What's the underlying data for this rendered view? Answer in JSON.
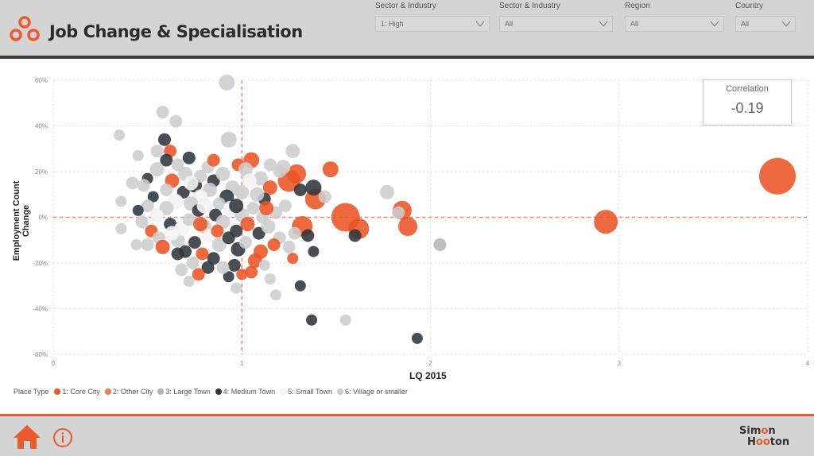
{
  "header": {
    "title": "Job Change & Specialisation"
  },
  "slicers": [
    {
      "label": "Sector & Industry",
      "value": "1: High"
    },
    {
      "label": "Sector & Industry",
      "value": "All"
    },
    {
      "label": "Region",
      "value": "All"
    },
    {
      "label": "Country",
      "value": "All"
    }
  ],
  "correlation": {
    "label": "Correlation",
    "value": "-0.19"
  },
  "footer": {
    "brand_line1": "Simon",
    "brand_line2": "Hooton"
  },
  "colors": {
    "accent": "#ea5a2c",
    "types": {
      "1": "#ec5424",
      "2": "#f27a4e",
      "3": "#b4b4b4",
      "4": "#2f353c",
      "5": "#f4f4f4",
      "6": "#cdcdcd"
    }
  },
  "chart_data": {
    "type": "scatter",
    "title": "",
    "xlabel": "LQ 2015",
    "ylabel": "Employment Count Change",
    "xlim": [
      0,
      4
    ],
    "ylim": [
      -60,
      60
    ],
    "xticks": [
      "0",
      "1",
      "2",
      "3",
      "4"
    ],
    "yticks": [
      "60%",
      "40%",
      "20%",
      "0%",
      "-20%",
      "-40%",
      "-60%"
    ],
    "reference_lines": {
      "x": 1,
      "y": 0
    },
    "grid": true,
    "legend": {
      "title": "Place Type",
      "position": "bottom-left",
      "entries": [
        "1: Core City",
        "2: Other City",
        "3: Large Town",
        "4: Medium Town",
        "5: Small Town",
        "6: Village or smaller"
      ]
    },
    "point_format": [
      "lq_2015",
      "employment_change_pct",
      "place_type",
      "relative_size"
    ],
    "points": [
      [
        3.84,
        18,
        1,
        23
      ],
      [
        2.93,
        -2,
        1,
        15
      ],
      [
        2.05,
        -12,
        3,
        8
      ],
      [
        1.93,
        -53,
        4,
        7
      ],
      [
        1.55,
        -45,
        6,
        7
      ],
      [
        1.37,
        -45,
        4,
        7
      ],
      [
        1.55,
        0,
        1,
        18
      ],
      [
        1.62,
        -5,
        1,
        13
      ],
      [
        1.88,
        -4,
        1,
        12
      ],
      [
        1.85,
        3,
        1,
        12
      ],
      [
        1.83,
        2,
        6,
        8
      ],
      [
        1.77,
        11,
        6,
        9
      ],
      [
        1.6,
        -8,
        4,
        8
      ],
      [
        1.47,
        21,
        1,
        10
      ],
      [
        1.39,
        8,
        1,
        13
      ],
      [
        1.38,
        13,
        4,
        10
      ],
      [
        1.32,
        -4,
        1,
        13
      ],
      [
        1.35,
        -8,
        4,
        8
      ],
      [
        1.38,
        -15,
        4,
        7
      ],
      [
        1.31,
        -30,
        4,
        7
      ],
      [
        1.18,
        -34,
        6,
        7
      ],
      [
        0.92,
        59,
        6,
        10
      ],
      [
        0.93,
        34,
        6,
        10
      ],
      [
        0.58,
        46,
        6,
        8
      ],
      [
        0.65,
        42,
        6,
        8
      ],
      [
        0.35,
        36,
        6,
        7
      ],
      [
        0.59,
        34,
        4,
        8
      ],
      [
        1.27,
        29,
        6,
        9
      ],
      [
        1.05,
        25,
        1,
        10
      ],
      [
        1.29,
        19,
        1,
        12
      ],
      [
        1.25,
        16,
        1,
        14
      ],
      [
        1.22,
        22,
        6,
        9
      ],
      [
        1.31,
        12,
        4,
        8
      ],
      [
        1.44,
        9,
        6,
        8
      ],
      [
        0.36,
        -5,
        6,
        7
      ],
      [
        0.36,
        7,
        6,
        7
      ],
      [
        0.45,
        27,
        6,
        7
      ],
      [
        0.5,
        17,
        4,
        7
      ],
      [
        0.48,
        14,
        6,
        8
      ],
      [
        0.53,
        9,
        4,
        7
      ],
      [
        0.55,
        29,
        6,
        8
      ],
      [
        0.62,
        29,
        1,
        8
      ],
      [
        0.6,
        25,
        4,
        8
      ],
      [
        0.66,
        23,
        6,
        8
      ],
      [
        0.72,
        26,
        4,
        8
      ],
      [
        0.7,
        19,
        6,
        9
      ],
      [
        0.75,
        14,
        4,
        9
      ],
      [
        0.78,
        18,
        6,
        8
      ],
      [
        0.82,
        22,
        6,
        8
      ],
      [
        0.85,
        16,
        4,
        8
      ],
      [
        0.9,
        19,
        6,
        9
      ],
      [
        0.95,
        13,
        6,
        9
      ],
      [
        0.98,
        23,
        1,
        8
      ],
      [
        1.02,
        21,
        6,
        9
      ],
      [
        1.1,
        17,
        6,
        9
      ],
      [
        1.15,
        13,
        1,
        9
      ],
      [
        1.12,
        8,
        4,
        8
      ],
      [
        1.08,
        10,
        6,
        9
      ],
      [
        1.0,
        11,
        6,
        9
      ],
      [
        0.92,
        9,
        4,
        9
      ],
      [
        0.88,
        6,
        6,
        8
      ],
      [
        0.83,
        12,
        6,
        9
      ],
      [
        0.78,
        9,
        5,
        9
      ],
      [
        0.73,
        6,
        6,
        9
      ],
      [
        0.69,
        11,
        4,
        8
      ],
      [
        0.65,
        7,
        5,
        9
      ],
      [
        0.6,
        4,
        6,
        9
      ],
      [
        0.55,
        1,
        5,
        8
      ],
      [
        0.5,
        5,
        6,
        8
      ],
      [
        0.45,
        3,
        4,
        7
      ],
      [
        0.47,
        -2,
        6,
        8
      ],
      [
        0.52,
        -6,
        1,
        8
      ],
      [
        0.56,
        -9,
        6,
        8
      ],
      [
        0.58,
        -13,
        1,
        9
      ],
      [
        0.5,
        -12,
        6,
        8
      ],
      [
        0.62,
        -3,
        4,
        8
      ],
      [
        0.66,
        -10,
        6,
        9
      ],
      [
        0.7,
        -15,
        4,
        8
      ],
      [
        0.68,
        -5,
        5,
        9
      ],
      [
        0.72,
        -1,
        6,
        8
      ],
      [
        0.77,
        3,
        4,
        8
      ],
      [
        0.8,
        -4,
        6,
        9
      ],
      [
        0.83,
        -8,
        5,
        8
      ],
      [
        0.86,
        1,
        4,
        8
      ],
      [
        0.9,
        -2,
        6,
        9
      ],
      [
        0.94,
        4,
        5,
        9
      ],
      [
        0.97,
        -6,
        4,
        8
      ],
      [
        1.0,
        1,
        6,
        9
      ],
      [
        1.03,
        -3,
        1,
        9
      ],
      [
        1.06,
        4,
        6,
        8
      ],
      [
        1.09,
        -7,
        4,
        8
      ],
      [
        1.11,
        0,
        6,
        8
      ],
      [
        1.14,
        -4,
        6,
        9
      ],
      [
        1.18,
        2,
        6,
        8
      ],
      [
        1.2,
        -9,
        6,
        8
      ],
      [
        1.23,
        5,
        6,
        8
      ],
      [
        1.17,
        -12,
        1,
        8
      ],
      [
        1.1,
        -15,
        1,
        9
      ],
      [
        1.07,
        -19,
        1,
        9
      ],
      [
        1.05,
        -24,
        1,
        8
      ],
      [
        1.0,
        -25,
        1,
        7
      ],
      [
        0.96,
        -21,
        4,
        8
      ],
      [
        0.93,
        -26,
        4,
        7
      ],
      [
        0.9,
        -22,
        6,
        8
      ],
      [
        0.85,
        -18,
        4,
        8
      ],
      [
        0.82,
        -22,
        4,
        8
      ],
      [
        0.79,
        -16,
        1,
        8
      ],
      [
        0.77,
        -25,
        1,
        8
      ],
      [
        0.74,
        -20,
        6,
        8
      ],
      [
        0.72,
        -28,
        6,
        7
      ],
      [
        0.68,
        -23,
        6,
        8
      ],
      [
        0.75,
        -11,
        4,
        8
      ],
      [
        0.88,
        -12,
        6,
        9
      ],
      [
        0.93,
        -9,
        4,
        8
      ],
      [
        0.98,
        -14,
        4,
        9
      ],
      [
        1.02,
        -11,
        6,
        8
      ],
      [
        1.12,
        -21,
        6,
        7
      ],
      [
        1.15,
        -27,
        6,
        7
      ],
      [
        0.97,
        -31,
        6,
        7
      ],
      [
        1.27,
        -18,
        1,
        7
      ],
      [
        1.25,
        -13,
        6,
        8
      ],
      [
        1.28,
        -7,
        6,
        8
      ],
      [
        1.2,
        20,
        6,
        8
      ],
      [
        1.15,
        23,
        6,
        8
      ],
      [
        0.97,
        5,
        4,
        9
      ],
      [
        0.85,
        25,
        1,
        8
      ],
      [
        0.63,
        16,
        1,
        9
      ],
      [
        0.66,
        -16,
        4,
        8
      ],
      [
        0.78,
        -3,
        1,
        9
      ],
      [
        0.8,
        5,
        5,
        9
      ],
      [
        0.73,
        15,
        5,
        9
      ],
      [
        0.6,
        12,
        6,
        8
      ],
      [
        0.87,
        -6,
        1,
        8
      ],
      [
        1.04,
        16,
        5,
        9
      ],
      [
        1.13,
        4,
        1,
        9
      ],
      [
        0.55,
        21,
        6,
        9
      ],
      [
        0.42,
        15,
        6,
        8
      ],
      [
        0.44,
        -12,
        6,
        7
      ],
      [
        0.63,
        -7,
        5,
        9
      ]
    ]
  }
}
